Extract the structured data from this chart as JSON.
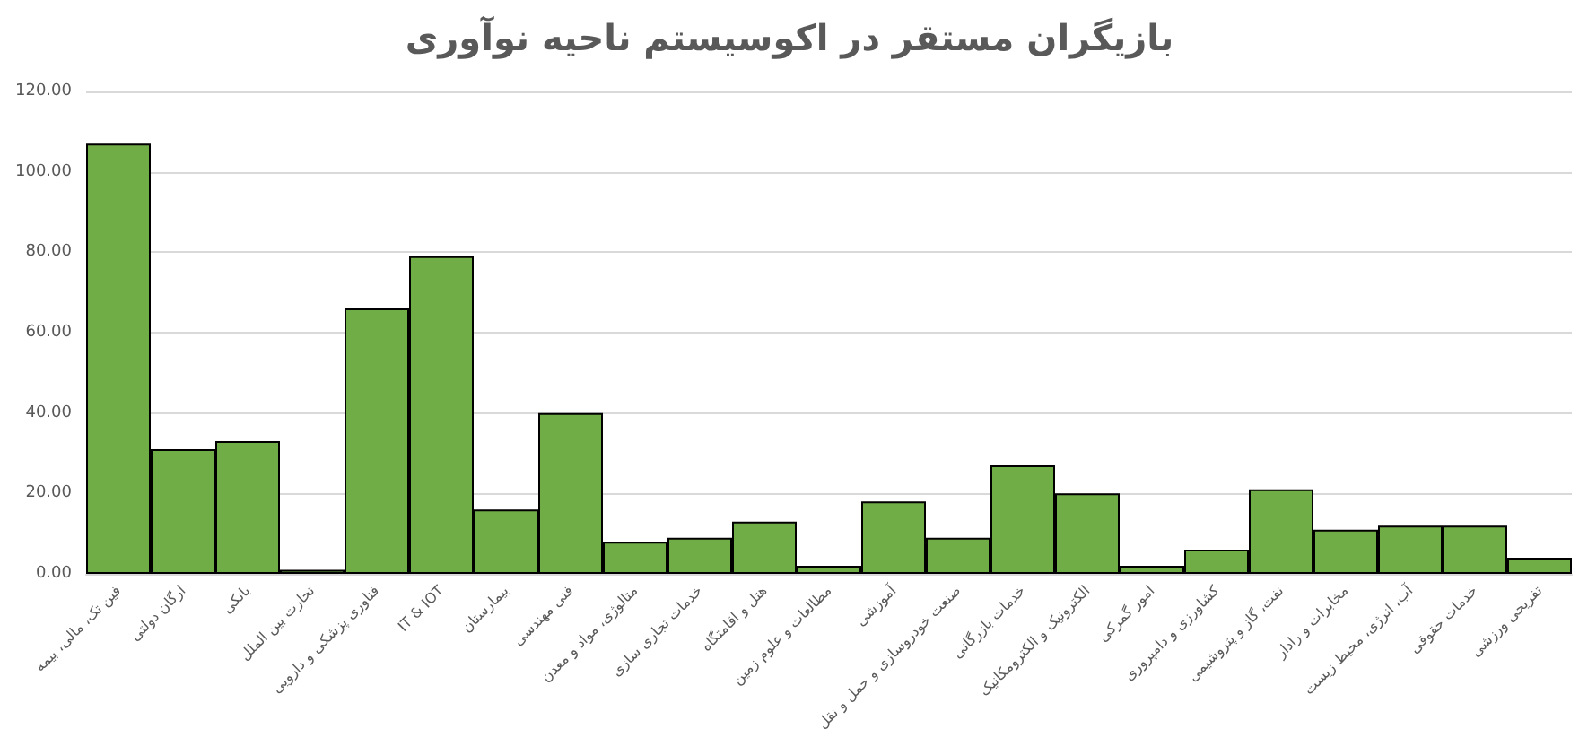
{
  "chart_data": {
    "type": "bar",
    "title": "بازیگران مستقر در اکوسیستم ناحیه نوآوری",
    "categories": [
      "فین تک، مالی، بیمه",
      "ارگان دولتی",
      "بانکی",
      "تجارت بین الملل",
      "فناوری پزشکی و دارویی",
      "IT & IOT",
      "بیمارستان",
      "فنی مهندسی",
      "متالوژی، مواد و معدن",
      "خدمات تجاری سازی",
      "هتل و اقامتگاه",
      "مطالعات و علوم زمین",
      "آموزشی",
      "صنعت خودروسازی و حمل و نقل",
      "خدمات بازرگانی",
      "الکترونیک و الکترومکانیک",
      "امور گمرکی",
      "کشاورزی و دامپروری",
      "نفت، گاز و پتروشیمی",
      "مخابرات و رادار",
      "آب، انرژی، محیط زیست",
      "خدمات حقوقی",
      "تفریحی ورزشی"
    ],
    "values": [
      107,
      31,
      33,
      1,
      66,
      79,
      16,
      40,
      8,
      9,
      13,
      2,
      18,
      9,
      27,
      20,
      2,
      6,
      21,
      11,
      12,
      12,
      4
    ],
    "color": "#70ad47",
    "ylim": [
      0,
      120
    ],
    "yticks": [
      {
        "value": 0,
        "label": "0.00"
      },
      {
        "value": 20,
        "label": "20.00"
      },
      {
        "value": 40,
        "label": "40.00"
      },
      {
        "value": 60,
        "label": "60.00"
      },
      {
        "value": 80,
        "label": "80.00"
      },
      {
        "value": 100,
        "label": "100.00"
      },
      {
        "value": 120,
        "label": "120.00"
      }
    ],
    "grid": "y"
  }
}
